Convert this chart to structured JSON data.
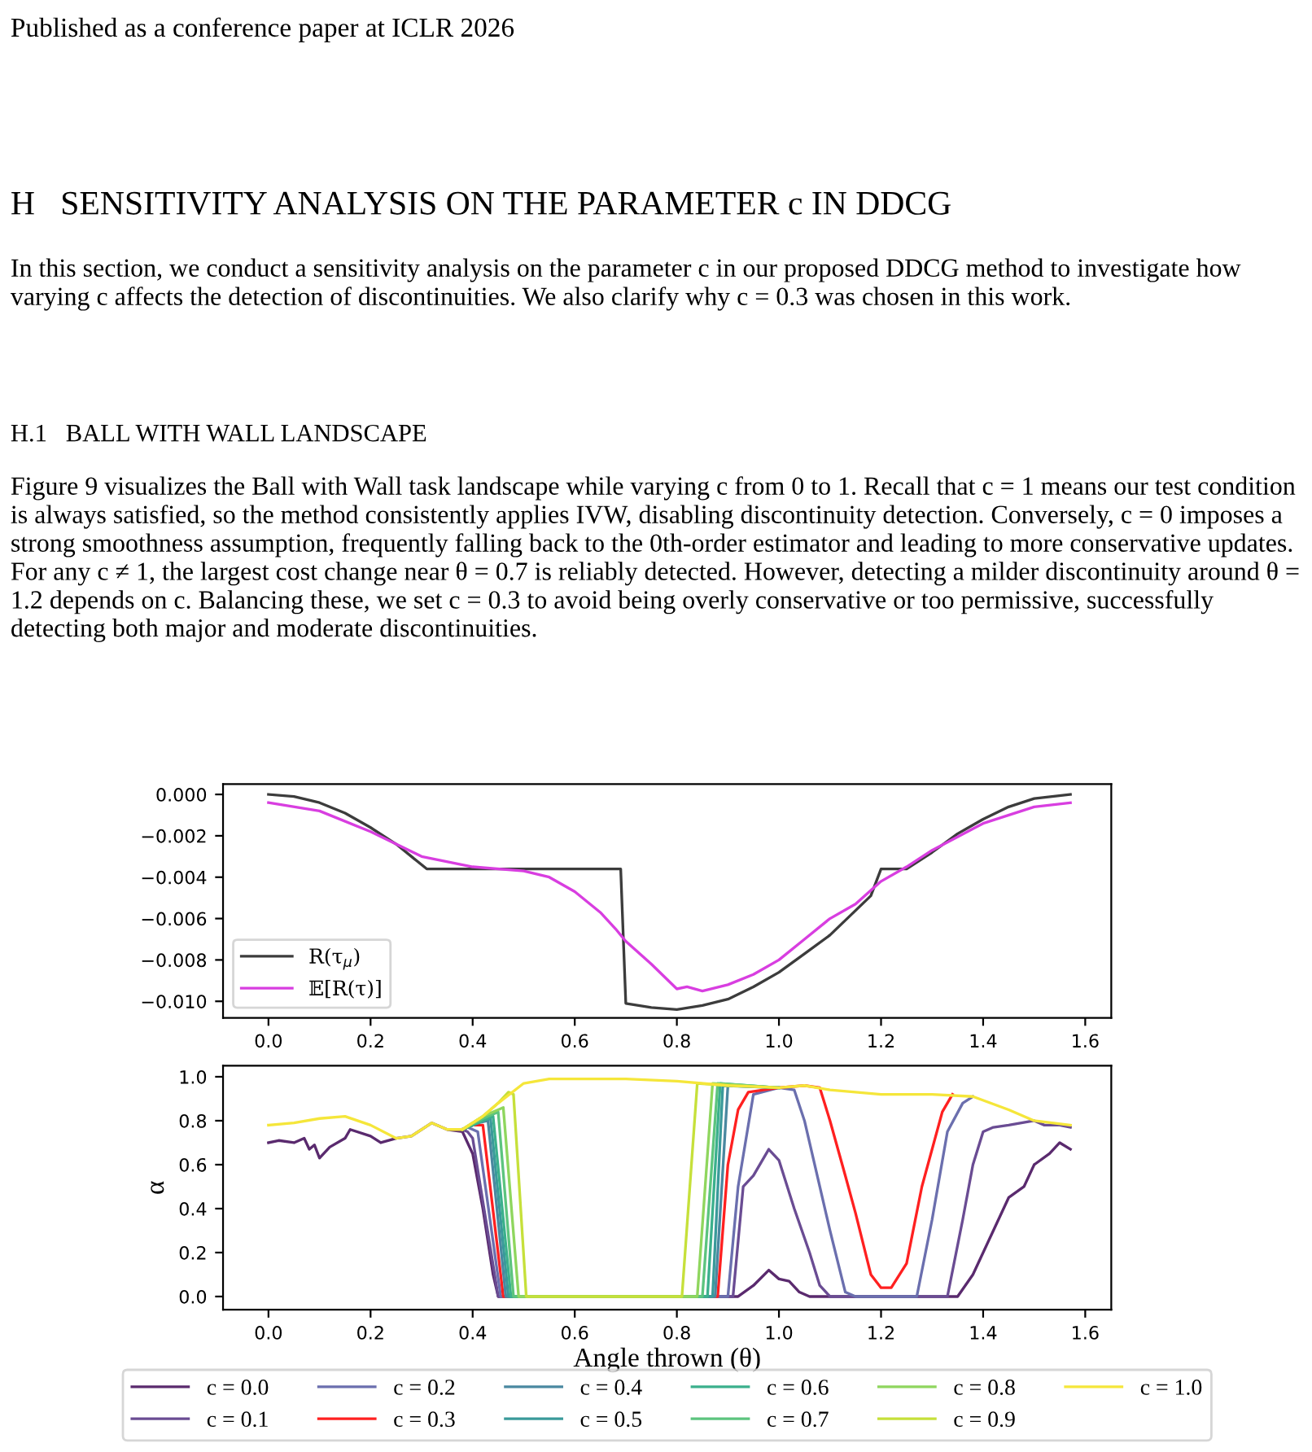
{
  "chart_data": [
    {
      "type": "line",
      "title": "H   SENSITIVITY ANALYSIS ON THE PARAMETER c IN DDCG",
      "annotations": [
        "Published as a conference paper at ICLR 2026",
        "In this section, we conduct a sensitivity analysis on the parameter c in our proposed DDCG method to investigate how varying c affects the detection of discontinuities. We also clarify why c = 0.3 was chosen in this work.",
        "H.1   BALL WITH WALL LANDSCAPE",
        "Figure 9 visualizes the Ball with Wall task landscape while varying c from 0 to 1. Recall that c = 1 means our test condition is always satisfied, so the method consistently applies IVW, disabling discontinuity detection. Conversely, c = 0 imposes a strong smoothness assumption, frequently falling back to the 0th-order estimator and leading to more conservative updates. For any c ≠ 1, the largest cost change near θ = 0.7 is reliably detected. However, detecting a milder discontinuity around θ = 1.2 depends on c. Balancing these, we set c = 0.3 to avoid being overly conservative or too permissive, successfully detecting both major and moderate discontinuities."
      ],
      "xlim": [
        -0.089,
        1.651
      ],
      "xticks": [
        {
          "value": 0,
          "label": "0.0"
        },
        {
          "value": 0.2,
          "label": "0.2"
        },
        {
          "value": 0.4,
          "label": "0.4"
        },
        {
          "value": 0.6,
          "label": "0.6"
        },
        {
          "value": 0.8,
          "label": "0.8"
        },
        {
          "value": 1.0,
          "label": "1.0"
        },
        {
          "value": 1.2,
          "label": "1.2"
        },
        {
          "value": 1.4,
          "label": "1.4"
        },
        {
          "value": 1.6,
          "label": "1.6"
        }
      ],
      "ylim": [
        -0.0108,
        0.0005
      ],
      "yticks": [
        {
          "value": 0,
          "label": "0.000"
        },
        {
          "value": -0.002,
          "label": "−0.002"
        },
        {
          "value": -0.004,
          "label": "−0.004"
        },
        {
          "value": -0.006,
          "label": "−0.006"
        },
        {
          "value": -0.008,
          "label": "−0.008"
        },
        {
          "value": -0.01,
          "label": "−0.010"
        }
      ],
      "legend": "bottom left",
      "grid": false,
      "marker": "none",
      "line_style": "solid",
      "series": [
        {
          "name": "R(τ$_{μ}$)",
          "color": "#3c3c3c",
          "x": [
            0,
            0.05,
            0.1,
            0.15,
            0.2,
            0.25,
            0.31,
            0.69,
            0.7,
            0.75,
            0.8,
            0.85,
            0.9,
            0.95,
            1.0,
            1.05,
            1.1,
            1.18,
            1.2,
            1.25,
            1.3,
            1.35,
            1.4,
            1.45,
            1.5,
            1.571
          ],
          "values": [
            0,
            -0.0001,
            -0.0004,
            -0.0009,
            -0.0016,
            -0.0024,
            -0.0036,
            -0.0036,
            -0.0101,
            -0.0103,
            -0.0104,
            -0.0102,
            -0.0099,
            -0.0093,
            -0.0086,
            -0.0077,
            -0.0068,
            -0.0049,
            -0.0036,
            -0.0036,
            -0.0028,
            -0.0019,
            -0.0012,
            -0.0006,
            -0.0002,
            0
          ]
        },
        {
          "name": "𝔼[R(τ)]",
          "color": "#d83ee0",
          "x": [
            0,
            0.1,
            0.2,
            0.3,
            0.4,
            0.5,
            0.55,
            0.6,
            0.65,
            0.68,
            0.7,
            0.75,
            0.8,
            0.82,
            0.85,
            0.9,
            0.95,
            1.0,
            1.05,
            1.1,
            1.15,
            1.2,
            1.25,
            1.3,
            1.4,
            1.5,
            1.571
          ],
          "values": [
            -0.0004,
            -0.0008,
            -0.0018,
            -0.003,
            -0.0035,
            -0.0037,
            -0.004,
            -0.0047,
            -0.0057,
            -0.0065,
            -0.0071,
            -0.0082,
            -0.0094,
            -0.0093,
            -0.0095,
            -0.0092,
            -0.0087,
            -0.008,
            -0.007,
            -0.006,
            -0.0053,
            -0.0042,
            -0.0035,
            -0.0027,
            -0.0014,
            -0.0006,
            -0.0004
          ]
        }
      ]
    },
    {
      "type": "line",
      "xlabel": "Angle thrown (θ)",
      "ylabel": "α",
      "xlim": [
        -0.089,
        1.651
      ],
      "xticks": [
        {
          "value": 0,
          "label": "0.0"
        },
        {
          "value": 0.2,
          "label": "0.2"
        },
        {
          "value": 0.4,
          "label": "0.4"
        },
        {
          "value": 0.6,
          "label": "0.6"
        },
        {
          "value": 0.8,
          "label": "0.8"
        },
        {
          "value": 1.0,
          "label": "1.0"
        },
        {
          "value": 1.2,
          "label": "1.2"
        },
        {
          "value": 1.4,
          "label": "1.4"
        },
        {
          "value": 1.6,
          "label": "1.6"
        }
      ],
      "ylim": [
        -0.06,
        1.05
      ],
      "yticks": [
        {
          "value": 0,
          "label": "0.0"
        },
        {
          "value": 0.2,
          "label": "0.2"
        },
        {
          "value": 0.4,
          "label": "0.4"
        },
        {
          "value": 0.6,
          "label": "0.6"
        },
        {
          "value": 0.8,
          "label": "0.8"
        },
        {
          "value": 1.0,
          "label": "1.0"
        }
      ],
      "legend": "bottom",
      "grid": false,
      "marker": "none",
      "line_style": "solid",
      "series": [
        {
          "name": "c = 0.0",
          "color": "#5a2a6e",
          "x": [
            0,
            0.02,
            0.05,
            0.07,
            0.08,
            0.09,
            0.1,
            0.12,
            0.15,
            0.16,
            0.2,
            0.22,
            0.25,
            0.28,
            0.32,
            0.35,
            0.38,
            0.4,
            0.42,
            0.44,
            0.45,
            0.92,
            0.95,
            0.98,
            1.0,
            1.02,
            1.04,
            1.06,
            1.35,
            1.38,
            1.42,
            1.45,
            1.48,
            1.5,
            1.53,
            1.55,
            1.571
          ],
          "values": [
            0.7,
            0.71,
            0.7,
            0.72,
            0.67,
            0.69,
            0.63,
            0.68,
            0.72,
            0.76,
            0.73,
            0.7,
            0.72,
            0.73,
            0.79,
            0.76,
            0.75,
            0.65,
            0.4,
            0.1,
            0,
            0,
            0.05,
            0.12,
            0.08,
            0.07,
            0.02,
            0,
            0,
            0.1,
            0.3,
            0.45,
            0.5,
            0.6,
            0.65,
            0.7,
            0.67
          ]
        },
        {
          "name": "c = 0.1",
          "color": "#6a4c93",
          "x": [
            0.38,
            0.39,
            0.4,
            0.45,
            0.91,
            0.93,
            0.95,
            0.98,
            1.0,
            1.03,
            1.06,
            1.08,
            1.1,
            1.33,
            1.36,
            1.38,
            1.4,
            1.42,
            1.45,
            1.5,
            1.52,
            1.55,
            1.571
          ],
          "values": [
            0.76,
            0.75,
            0.72,
            0,
            0,
            0.5,
            0.55,
            0.67,
            0.62,
            0.4,
            0.2,
            0.05,
            0,
            0,
            0.35,
            0.6,
            0.75,
            0.77,
            0.78,
            0.8,
            0.78,
            0.78,
            0.77
          ]
        },
        {
          "name": "c = 0.2",
          "color": "#6b6fae",
          "x": [
            0.38,
            0.39,
            0.41,
            0.455,
            0.9,
            0.92,
            0.95,
            1.0,
            1.03,
            1.05,
            1.08,
            1.1,
            1.13,
            1.15,
            1.27,
            1.3,
            1.33,
            1.36,
            1.38
          ],
          "values": [
            0.76,
            0.77,
            0.75,
            0,
            0,
            0.5,
            0.92,
            0.95,
            0.94,
            0.8,
            0.5,
            0.3,
            0.02,
            0,
            0,
            0.35,
            0.75,
            0.88,
            0.91
          ]
        },
        {
          "name": "c = 0.3",
          "color": "#ff2020",
          "x": [
            0.38,
            0.4,
            0.42,
            0.46,
            0.88,
            0.9,
            0.92,
            0.94,
            1.0,
            1.05,
            1.08,
            1.1,
            1.13,
            1.15,
            1.18,
            1.2,
            1.22,
            1.25,
            1.28,
            1.32,
            1.34
          ],
          "values": [
            0.76,
            0.78,
            0.78,
            0,
            0,
            0.6,
            0.85,
            0.93,
            0.95,
            0.96,
            0.95,
            0.8,
            0.55,
            0.38,
            0.1,
            0.04,
            0.04,
            0.15,
            0.5,
            0.84,
            0.92
          ]
        },
        {
          "name": "c = 0.4",
          "color": "#4a88a0",
          "x": [
            0.38,
            0.41,
            0.43,
            0.465,
            0.875,
            0.9,
            1.0
          ],
          "values": [
            0.76,
            0.79,
            0.8,
            0,
            0,
            0.96,
            0.95
          ]
        },
        {
          "name": "c = 0.5",
          "color": "#3a9a9a",
          "x": [
            0.38,
            0.42,
            0.435,
            0.47,
            0.87,
            0.89,
            1.0
          ],
          "values": [
            0.76,
            0.8,
            0.81,
            0,
            0,
            0.96,
            0.95
          ]
        },
        {
          "name": "c = 0.6",
          "color": "#3bb08c",
          "x": [
            0.38,
            0.42,
            0.44,
            0.475,
            0.86,
            0.885,
            1.0
          ],
          "values": [
            0.76,
            0.8,
            0.82,
            0,
            0,
            0.97,
            0.95
          ]
        },
        {
          "name": "c = 0.7",
          "color": "#5cc47e",
          "x": [
            0.38,
            0.42,
            0.45,
            0.48,
            0.85,
            0.88,
            1.0
          ],
          "values": [
            0.76,
            0.81,
            0.84,
            0,
            0,
            0.97,
            0.95
          ]
        },
        {
          "name": "c = 0.8",
          "color": "#8fd65e",
          "x": [
            0.38,
            0.42,
            0.45,
            0.46,
            0.49,
            0.84,
            0.87,
            1.0
          ],
          "values": [
            0.76,
            0.82,
            0.85,
            0.86,
            0,
            0,
            0.97,
            0.95
          ]
        },
        {
          "name": "c = 0.9",
          "color": "#c6e03a",
          "x": [
            0.38,
            0.42,
            0.45,
            0.47,
            0.48,
            0.505,
            0.81,
            0.84,
            0.9
          ],
          "values": [
            0.76,
            0.82,
            0.88,
            0.93,
            0.92,
            0,
            0,
            0.97,
            0.96
          ]
        },
        {
          "name": "c = 1.0",
          "color": "#f5e63a",
          "x": [
            0,
            0.05,
            0.1,
            0.15,
            0.2,
            0.25,
            0.28,
            0.32,
            0.35,
            0.38,
            0.42,
            0.45,
            0.5,
            0.55,
            0.7,
            0.8,
            0.9,
            1.0,
            1.05,
            1.1,
            1.2,
            1.3,
            1.38,
            1.45,
            1.5,
            1.571
          ],
          "values": [
            0.78,
            0.79,
            0.81,
            0.82,
            0.78,
            0.72,
            0.73,
            0.79,
            0.76,
            0.76,
            0.82,
            0.88,
            0.97,
            0.99,
            0.99,
            0.98,
            0.96,
            0.95,
            0.96,
            0.94,
            0.92,
            0.92,
            0.91,
            0.85,
            0.8,
            0.78
          ]
        }
      ]
    }
  ]
}
